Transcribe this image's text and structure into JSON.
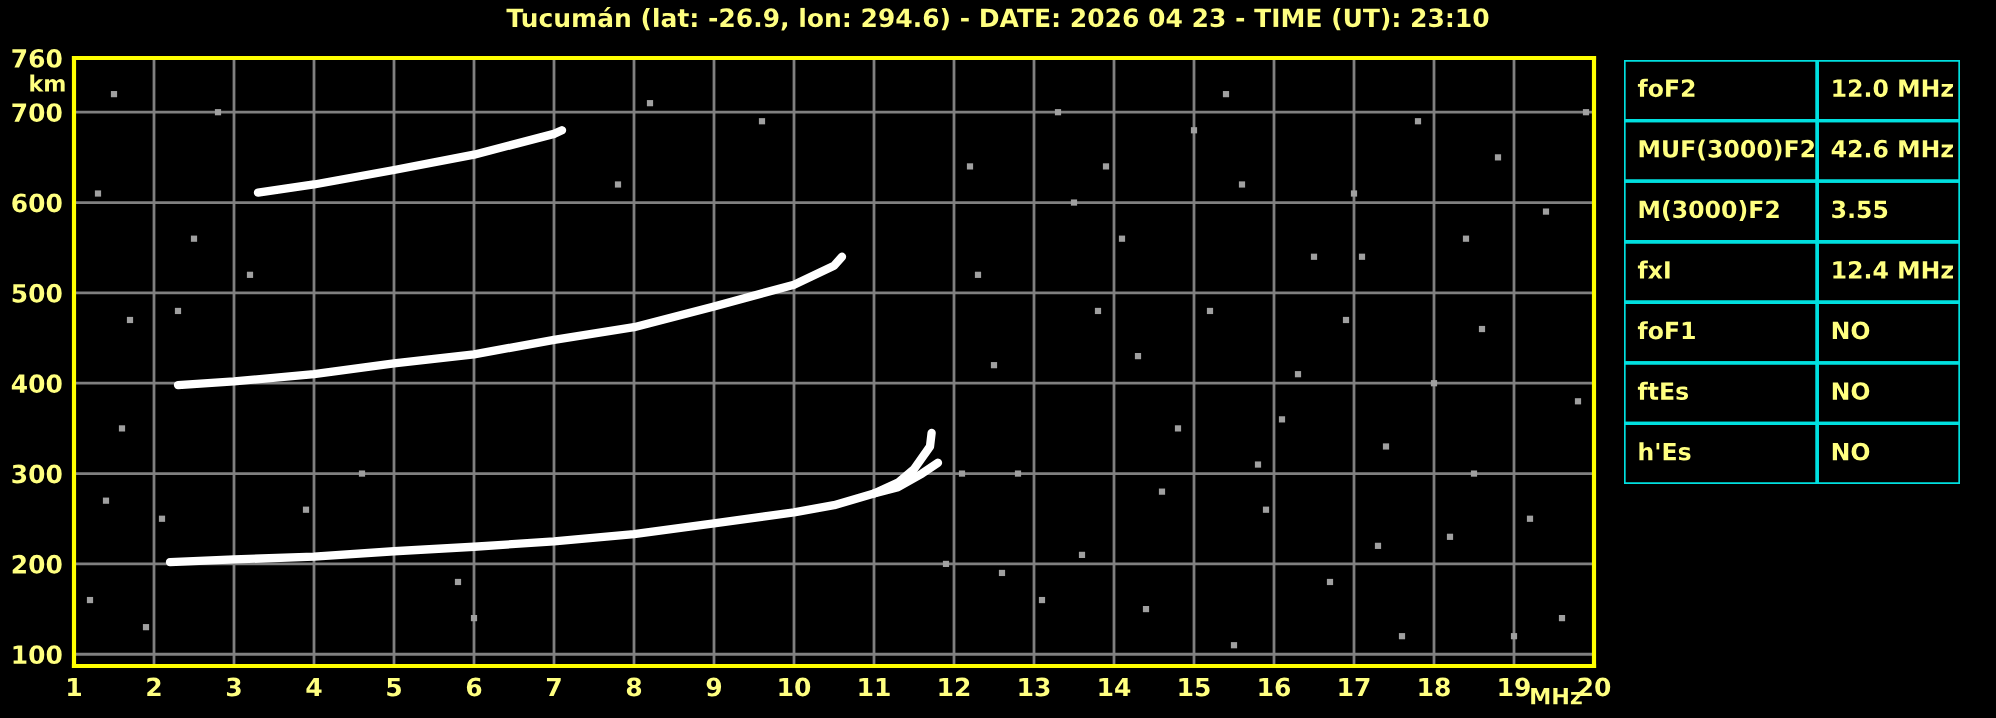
{
  "chart_data": [
    {
      "type": "line",
      "title": "Tucumán (lat: -26.9, lon: 294.6) - DATE: 2026 04 23 - TIME (UT): 23:10",
      "xlabel": "MHz",
      "ylabel": "km",
      "xlim": [
        1,
        20
      ],
      "ylim": [
        87,
        760
      ],
      "xticks": [
        1,
        2,
        3,
        4,
        5,
        6,
        7,
        8,
        9,
        10,
        11,
        12,
        13,
        14,
        15,
        16,
        17,
        18,
        19,
        20
      ],
      "yticks": [
        100,
        200,
        300,
        400,
        500,
        600,
        700,
        760
      ],
      "grid": true,
      "marker": "none",
      "line_style": "solid",
      "legend": false,
      "series": [
        {
          "color": "#ffffff",
          "x": [
            2.2,
            3,
            4,
            5,
            6,
            7,
            8,
            9,
            10,
            10.5,
            11,
            11.3,
            11.5,
            11.7,
            11.72
          ],
          "values": [
            202,
            205,
            208,
            214,
            219,
            225,
            233,
            245,
            257,
            265,
            278,
            290,
            305,
            330,
            345
          ]
        },
        {
          "color": "#ffffff",
          "x": [
            11.0,
            11.3,
            11.6,
            11.8
          ],
          "values": [
            278,
            285,
            300,
            312
          ]
        },
        {
          "color": "#ffffff",
          "x": [
            2.3,
            3,
            4,
            5,
            6,
            7,
            8,
            9,
            10,
            10.5,
            10.6
          ],
          "values": [
            398,
            402,
            410,
            422,
            432,
            448,
            462,
            485,
            509,
            530,
            540
          ]
        },
        {
          "color": "#ffffff",
          "x": [
            3.3,
            4,
            5,
            6,
            7,
            7.1
          ],
          "values": [
            611,
            620,
            636,
            653,
            676,
            680
          ]
        },
        {
          "type": "scatter",
          "color": "#a0a0a0",
          "marker": "square",
          "x": [
            1.2,
            1.4,
            1.6,
            1.9,
            2.3,
            2.5,
            2.8,
            3.2,
            1.3,
            1.7,
            2.1,
            4.6,
            5.8,
            6.0,
            7.8,
            12.2,
            12.5,
            12.8,
            13.3,
            13.6,
            14.1,
            14.4,
            14.8,
            15.2,
            15.6,
            15.9,
            16.3,
            16.7,
            17.1,
            17.4,
            17.8,
            18.2,
            18.6,
            19.0,
            19.4,
            19.8,
            12.3,
            13.1,
            13.9,
            14.6,
            15.4,
            16.1,
            16.9,
            17.6,
            18.4,
            19.2,
            12.6,
            13.5,
            14.3,
            15.0,
            15.8,
            16.5,
            17.3,
            18.0,
            18.8,
            19.6,
            12.1,
            13.8,
            15.5,
            17.0,
            18.5,
            19.9,
            11.9,
            9.6,
            8.2,
            3.9,
            1.5
          ],
          "values": [
            160,
            270,
            350,
            130,
            480,
            560,
            700,
            520,
            610,
            470,
            250,
            300,
            180,
            140,
            620,
            640,
            420,
            300,
            700,
            210,
            560,
            150,
            350,
            480,
            620,
            260,
            410,
            180,
            540,
            330,
            690,
            230,
            460,
            120,
            590,
            380,
            520,
            160,
            640,
            280,
            720,
            360,
            470,
            120,
            560,
            250,
            190,
            600,
            430,
            680,
            310,
            540,
            220,
            400,
            650,
            140,
            300,
            480,
            110,
            610,
            300,
            700,
            200,
            690,
            710,
            260,
            720
          ]
        }
      ]
    },
    {
      "type": "other",
      "annotations": [
        "foF2",
        "12.0 MHz",
        "MUF(3000)F2",
        "42.6 MHz",
        "M(3000)F2",
        "3.55",
        "fxI",
        "12.4 MHz",
        "foF1",
        "NO",
        "ftEs",
        "NO",
        "h'Es",
        "NO"
      ]
    }
  ]
}
